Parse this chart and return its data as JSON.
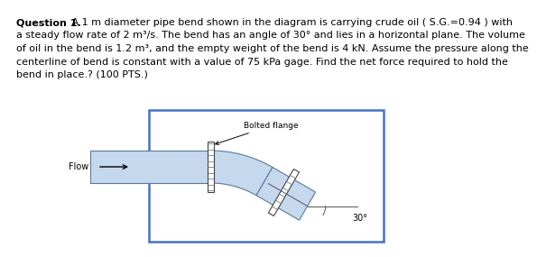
{
  "bold_part": "Question 1.",
  "body_text": " A 1 m diameter pipe bend shown in the diagram is carrying crude oil ( S.G.=0.94 ) with\na steady flow rate of 2 m³/s. The bend has an angle of 30° and lies in a horizontal plane. The volume\nof oil in the bend is 1.2 m³, and the empty weight of the bend is 4 kN. Assume the pressure along the\ncenterline of bend is constant with a value of 75 kPa gage. Find the net force required to hold the\nbend in place.? (100 PTS.)",
  "bg_color": "#ffffff",
  "text_color": "#000000",
  "pipe_fill": "#c5d8ee",
  "pipe_edge": "#5a7a9a",
  "box_edge": "#4472c4",
  "angle_label": "30°",
  "flow_label": "Flow",
  "bolted_flange_label": "Bolted flange",
  "text_fontsize": 8.0,
  "diagram_fontsize": 7.0
}
